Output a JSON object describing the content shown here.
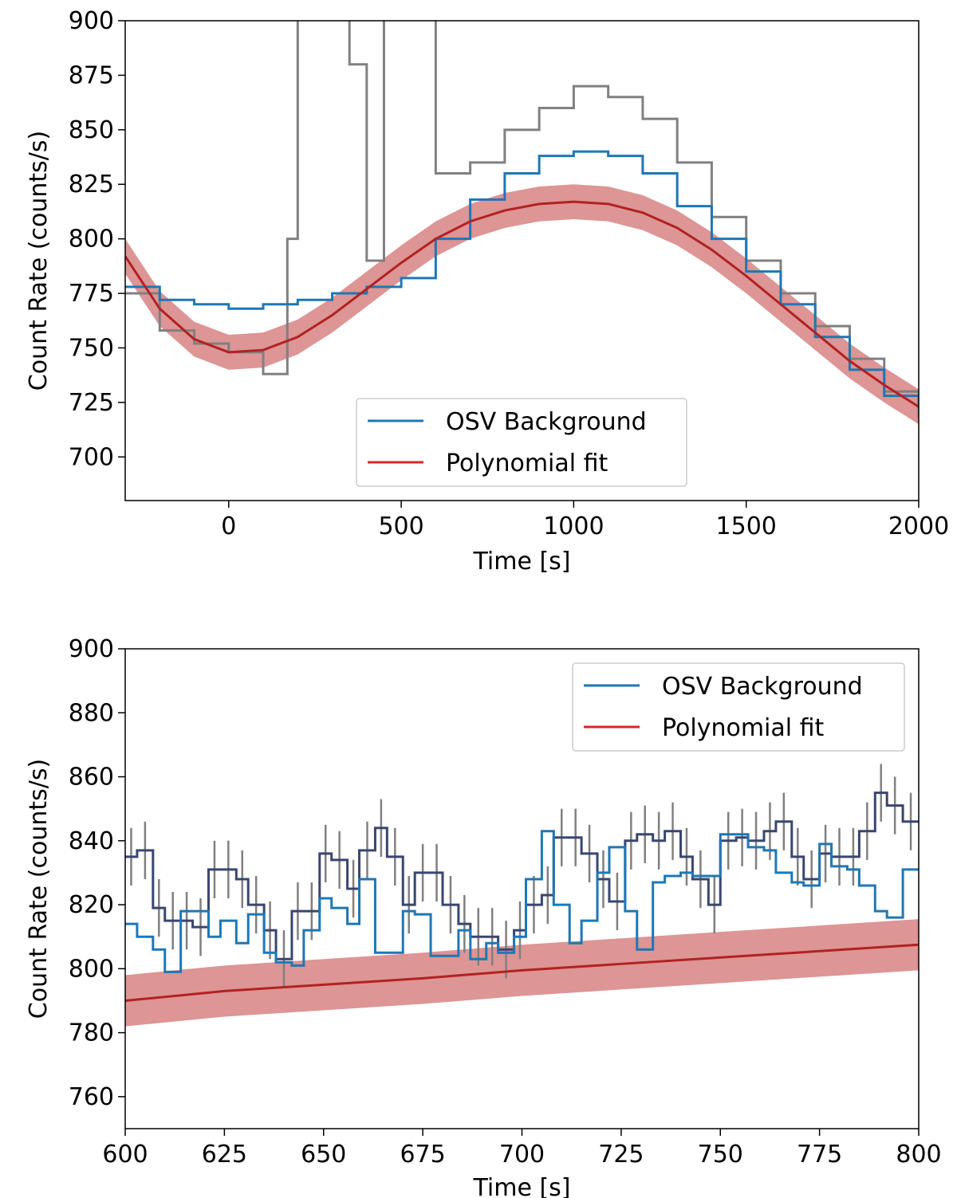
{
  "chart_data": [
    {
      "type": "line",
      "xlabel": "Time [s]",
      "ylabel": "Count Rate (counts/s)",
      "xlim": [
        -300,
        2000
      ],
      "ylim": [
        680,
        900
      ],
      "xticks": [
        0,
        500,
        1000,
        1500,
        2000
      ],
      "yticks": [
        700,
        725,
        750,
        775,
        800,
        825,
        850,
        875,
        900
      ],
      "legend": {
        "placement": "lower-center",
        "entries": [
          {
            "label": "OSV Background",
            "color": "#1f77b4"
          },
          {
            "label": "Polynomial fit",
            "color": "#d62728"
          }
        ]
      },
      "series": [
        {
          "role": "source",
          "color": "#808080",
          "x": [
            -300,
            -200,
            -100,
            0,
            100,
            170,
            200,
            250,
            300,
            350,
            400,
            450,
            500,
            550,
            600,
            700,
            800,
            900,
            1000,
            1100,
            1200,
            1300,
            1400,
            1500,
            1600,
            1700,
            1800,
            1900,
            2000
          ],
          "y": [
            775,
            758,
            752,
            748,
            738,
            800,
            905,
            905,
            905,
            880,
            790,
            905,
            905,
            905,
            830,
            835,
            850,
            860,
            870,
            865,
            855,
            835,
            810,
            790,
            775,
            760,
            745,
            730,
            718
          ]
        },
        {
          "role": "background",
          "color": "#1f77b4",
          "x": [
            -300,
            -200,
            -100,
            0,
            100,
            200,
            300,
            400,
            500,
            600,
            700,
            800,
            900,
            1000,
            1100,
            1200,
            1300,
            1400,
            1500,
            1600,
            1700,
            1800,
            1900,
            2000
          ],
          "y": [
            778,
            772,
            770,
            768,
            770,
            772,
            775,
            778,
            782,
            800,
            818,
            830,
            838,
            840,
            838,
            830,
            815,
            800,
            785,
            770,
            755,
            740,
            728,
            722
          ]
        },
        {
          "role": "fit",
          "color": "#b22222",
          "band_color": "#d98a8a",
          "band_halfwidth": 8,
          "x": [
            -300,
            -200,
            -100,
            0,
            100,
            200,
            300,
            400,
            500,
            600,
            700,
            800,
            900,
            1000,
            1100,
            1200,
            1300,
            1400,
            1500,
            1600,
            1700,
            1800,
            1900,
            2000
          ],
          "y": [
            792,
            768,
            754,
            748,
            749,
            755,
            765,
            777,
            789,
            800,
            808,
            813,
            816,
            817,
            816,
            812,
            805,
            795,
            783,
            770,
            757,
            744,
            733,
            723
          ]
        }
      ]
    },
    {
      "type": "line",
      "xlabel": "Time [s]",
      "ylabel": "Count Rate (counts/s)",
      "xlim": [
        600,
        800
      ],
      "ylim": [
        750,
        900
      ],
      "xticks": [
        600,
        625,
        650,
        675,
        700,
        725,
        750,
        775,
        800
      ],
      "yticks": [
        760,
        780,
        800,
        820,
        840,
        860,
        880,
        900
      ],
      "legend": {
        "placement": "upper-right",
        "entries": [
          {
            "label": "OSV Background",
            "color": "#1f77b4"
          },
          {
            "label": "Polynomial fit",
            "color": "#d62728"
          }
        ]
      },
      "series": [
        {
          "role": "source",
          "color": "#3a4670",
          "errbar_color": "#808080",
          "x": [
            600,
            603,
            607,
            610,
            614,
            617,
            621,
            624,
            628,
            631,
            635,
            638,
            642,
            645,
            649,
            652,
            656,
            659,
            663,
            666,
            670,
            673,
            677,
            680,
            684,
            687,
            691,
            694,
            698,
            701,
            705,
            708,
            712,
            715,
            719,
            722,
            726,
            729,
            733,
            736,
            740,
            743,
            747,
            750,
            754,
            757,
            761,
            764,
            768,
            771,
            775,
            778,
            782,
            785,
            789,
            792,
            796
          ],
          "y": [
            835,
            837,
            819,
            815,
            815,
            813,
            831,
            831,
            828,
            820,
            812,
            803,
            818,
            818,
            836,
            834,
            825,
            837,
            844,
            835,
            820,
            830,
            830,
            820,
            814,
            810,
            810,
            806,
            812,
            820,
            823,
            841,
            841,
            836,
            828,
            821,
            840,
            842,
            840,
            843,
            835,
            828,
            820,
            840,
            841,
            840,
            843,
            846,
            835,
            828,
            836,
            835,
            835,
            843,
            855,
            851,
            846
          ],
          "err": [
            9,
            9,
            9,
            9,
            9,
            9,
            9,
            9,
            9,
            9,
            9,
            9,
            9,
            9,
            9,
            9,
            9,
            9,
            9,
            9,
            9,
            9,
            9,
            9,
            9,
            9,
            9,
            9,
            9,
            9,
            9,
            9,
            9,
            9,
            9,
            9,
            9,
            9,
            9,
            9,
            9,
            9,
            9,
            9,
            9,
            9,
            9,
            9,
            9,
            9,
            9,
            9,
            9,
            9,
            9,
            9,
            9
          ]
        },
        {
          "role": "background",
          "color": "#1f77b4",
          "x": [
            600,
            603,
            607,
            610,
            614,
            617,
            621,
            624,
            628,
            631,
            635,
            638,
            642,
            645,
            649,
            652,
            656,
            659,
            663,
            666,
            670,
            673,
            677,
            680,
            684,
            687,
            691,
            694,
            698,
            701,
            705,
            708,
            712,
            715,
            719,
            722,
            726,
            729,
            733,
            736,
            740,
            743,
            747,
            750,
            754,
            757,
            761,
            764,
            768,
            771,
            775,
            778,
            782,
            785,
            789,
            792,
            796
          ],
          "y": [
            814,
            810,
            806,
            799,
            818,
            818,
            810,
            815,
            808,
            817,
            805,
            802,
            801,
            812,
            822,
            819,
            814,
            828,
            805,
            805,
            818,
            817,
            804,
            804,
            812,
            803,
            808,
            805,
            810,
            828,
            843,
            820,
            808,
            815,
            830,
            838,
            818,
            806,
            827,
            829,
            830,
            829,
            829,
            842,
            842,
            838,
            837,
            830,
            827,
            826,
            839,
            832,
            831,
            826,
            818,
            816,
            831
          ]
        },
        {
          "role": "fit",
          "color": "#b22222",
          "band_color": "#d98a8a",
          "band_halfwidth": 8,
          "x": [
            600,
            625,
            650,
            675,
            700,
            725,
            750,
            775,
            800
          ],
          "y": [
            790,
            793,
            795,
            797,
            799.5,
            801.5,
            803.5,
            805.5,
            807.5
          ]
        }
      ]
    }
  ]
}
